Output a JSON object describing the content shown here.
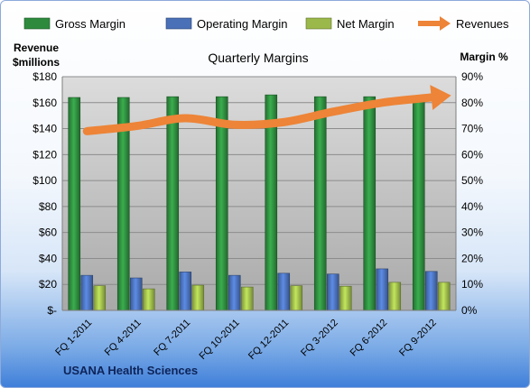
{
  "chart_data": {
    "type": "bar",
    "title": "Quarterly Margins",
    "ylabel_left": [
      "Revenue",
      "$millions"
    ],
    "ylabel_right": "Margin %",
    "footer": "USANA Health Sciences",
    "categories": [
      "FQ 1-2011",
      "FQ 4-2011",
      "FQ 7-2011",
      "FQ 10-2011",
      "FQ 12-2011",
      "FQ 3-2012",
      "FQ 6-2012",
      "FQ 9-2012"
    ],
    "left_axis": {
      "min": 0,
      "max": 180,
      "step": 20,
      "ticks": [
        "$-",
        "$20",
        "$40",
        "$60",
        "$80",
        "$100",
        "$120",
        "$140",
        "$160",
        "$180"
      ]
    },
    "right_axis": {
      "min": 0,
      "max": 90,
      "step": 10,
      "ticks": [
        "0%",
        "10%",
        "20%",
        "30%",
        "40%",
        "50%",
        "60%",
        "70%",
        "80%",
        "90%"
      ]
    },
    "grid": true,
    "legend_position": "top",
    "series": [
      {
        "name": "Gross Margin",
        "axis": "right",
        "type": "bar",
        "color": "#2e8b3e",
        "values": [
          82,
          82,
          82.3,
          82.3,
          83,
          82.3,
          82.3,
          82
        ]
      },
      {
        "name": "Operating Margin",
        "axis": "right",
        "type": "bar",
        "color": "#4a70b8",
        "values": [
          13.5,
          12.5,
          14.8,
          13.5,
          14.3,
          14,
          16,
          15
        ]
      },
      {
        "name": "Net Margin",
        "axis": "right",
        "type": "bar",
        "color": "#9bb84a",
        "values": [
          9.5,
          8.3,
          9.7,
          9,
          9.5,
          9.3,
          10.8,
          10.8
        ]
      },
      {
        "name": "Revenues",
        "axis": "left",
        "type": "line",
        "color": "#ed8437",
        "values": [
          138,
          142,
          148,
          143,
          145,
          153,
          160,
          164
        ]
      }
    ]
  }
}
